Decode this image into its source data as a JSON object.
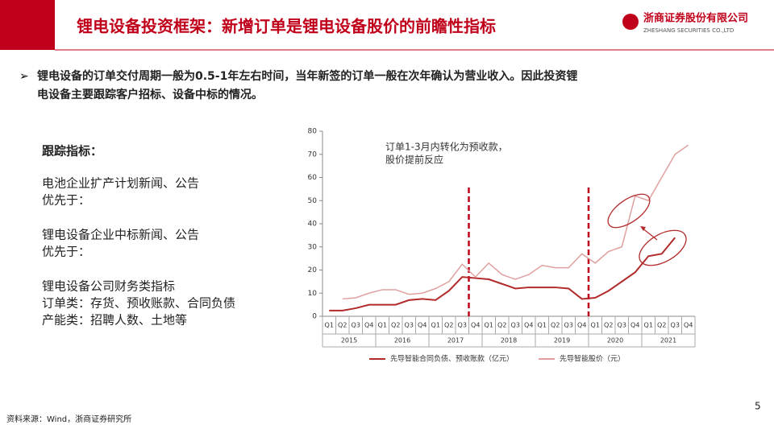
{
  "header": {
    "title": "锂电设备投资框架：新增订单是锂电设备股价的前瞻性指标",
    "logo": "浙商证券股份有限公司",
    "logo_en": "ZHESHANG SECURITIES CO.,LTD"
  },
  "bullet": [
    "锂电设备的订单交付周期一般为0.5-1年左右时间，当年新签的订单一般在次年确认为营业收入。因此投资锂",
    "电设备主要跟踪客户招标、设备中标的情况。"
  ],
  "left": {
    "heading": "跟踪指标：",
    "blocks": [
      [
        "电池企业扩产计划新闻、公告",
        "优先于："
      ],
      [
        "锂电设备企业中标新闻、公告",
        "优先于："
      ],
      [
        "锂电设备公司财务类指标",
        "订单类：存货、预收账款、合同负债",
        "产能类：招聘人数、土地等"
      ]
    ]
  },
  "source": "资料来源：Wind，浙商证券研究所",
  "page_number": "5",
  "chart_data": {
    "type": "line",
    "categories": [
      "Q1",
      "Q2",
      "Q3",
      "Q4",
      "Q1",
      "Q2",
      "Q3",
      "Q4",
      "Q1",
      "Q2",
      "Q3",
      "Q4",
      "Q1",
      "Q2",
      "Q3",
      "Q4",
      "Q1",
      "Q2",
      "Q3",
      "Q4",
      "Q1",
      "Q2",
      "Q3",
      "Q4",
      "Q1",
      "Q2",
      "Q3",
      "Q4"
    ],
    "year_groups": [
      "2015",
      "2016",
      "2017",
      "2018",
      "2019",
      "2020",
      "2021"
    ],
    "annotation": [
      "订单1-3月内转化为预收款，",
      "股价提前反应"
    ],
    "ylim": [
      0,
      80
    ],
    "yticks": [
      0,
      10,
      20,
      30,
      40,
      50,
      60,
      70,
      80
    ],
    "series": [
      {
        "name": "先导智能合同负债、预收账款（亿元）",
        "color": "#b22a2a",
        "values": [
          2.5,
          2.5,
          3.5,
          5,
          5,
          5,
          7,
          7.5,
          7,
          11,
          17,
          16.5,
          16,
          14,
          12,
          12.5,
          12.5,
          12.5,
          12,
          7.5,
          8,
          11,
          15,
          19,
          26,
          27,
          34,
          null
        ]
      },
      {
        "name": "先导智能股价（元）",
        "color": "#e0a0a0",
        "values": [
          null,
          7.5,
          8,
          10,
          11.5,
          11.5,
          9.5,
          10,
          12,
          15,
          22.5,
          17,
          23,
          18,
          16,
          18,
          22,
          21,
          21,
          27,
          23,
          28,
          30,
          52,
          50,
          60,
          70,
          74
        ]
      }
    ]
  }
}
